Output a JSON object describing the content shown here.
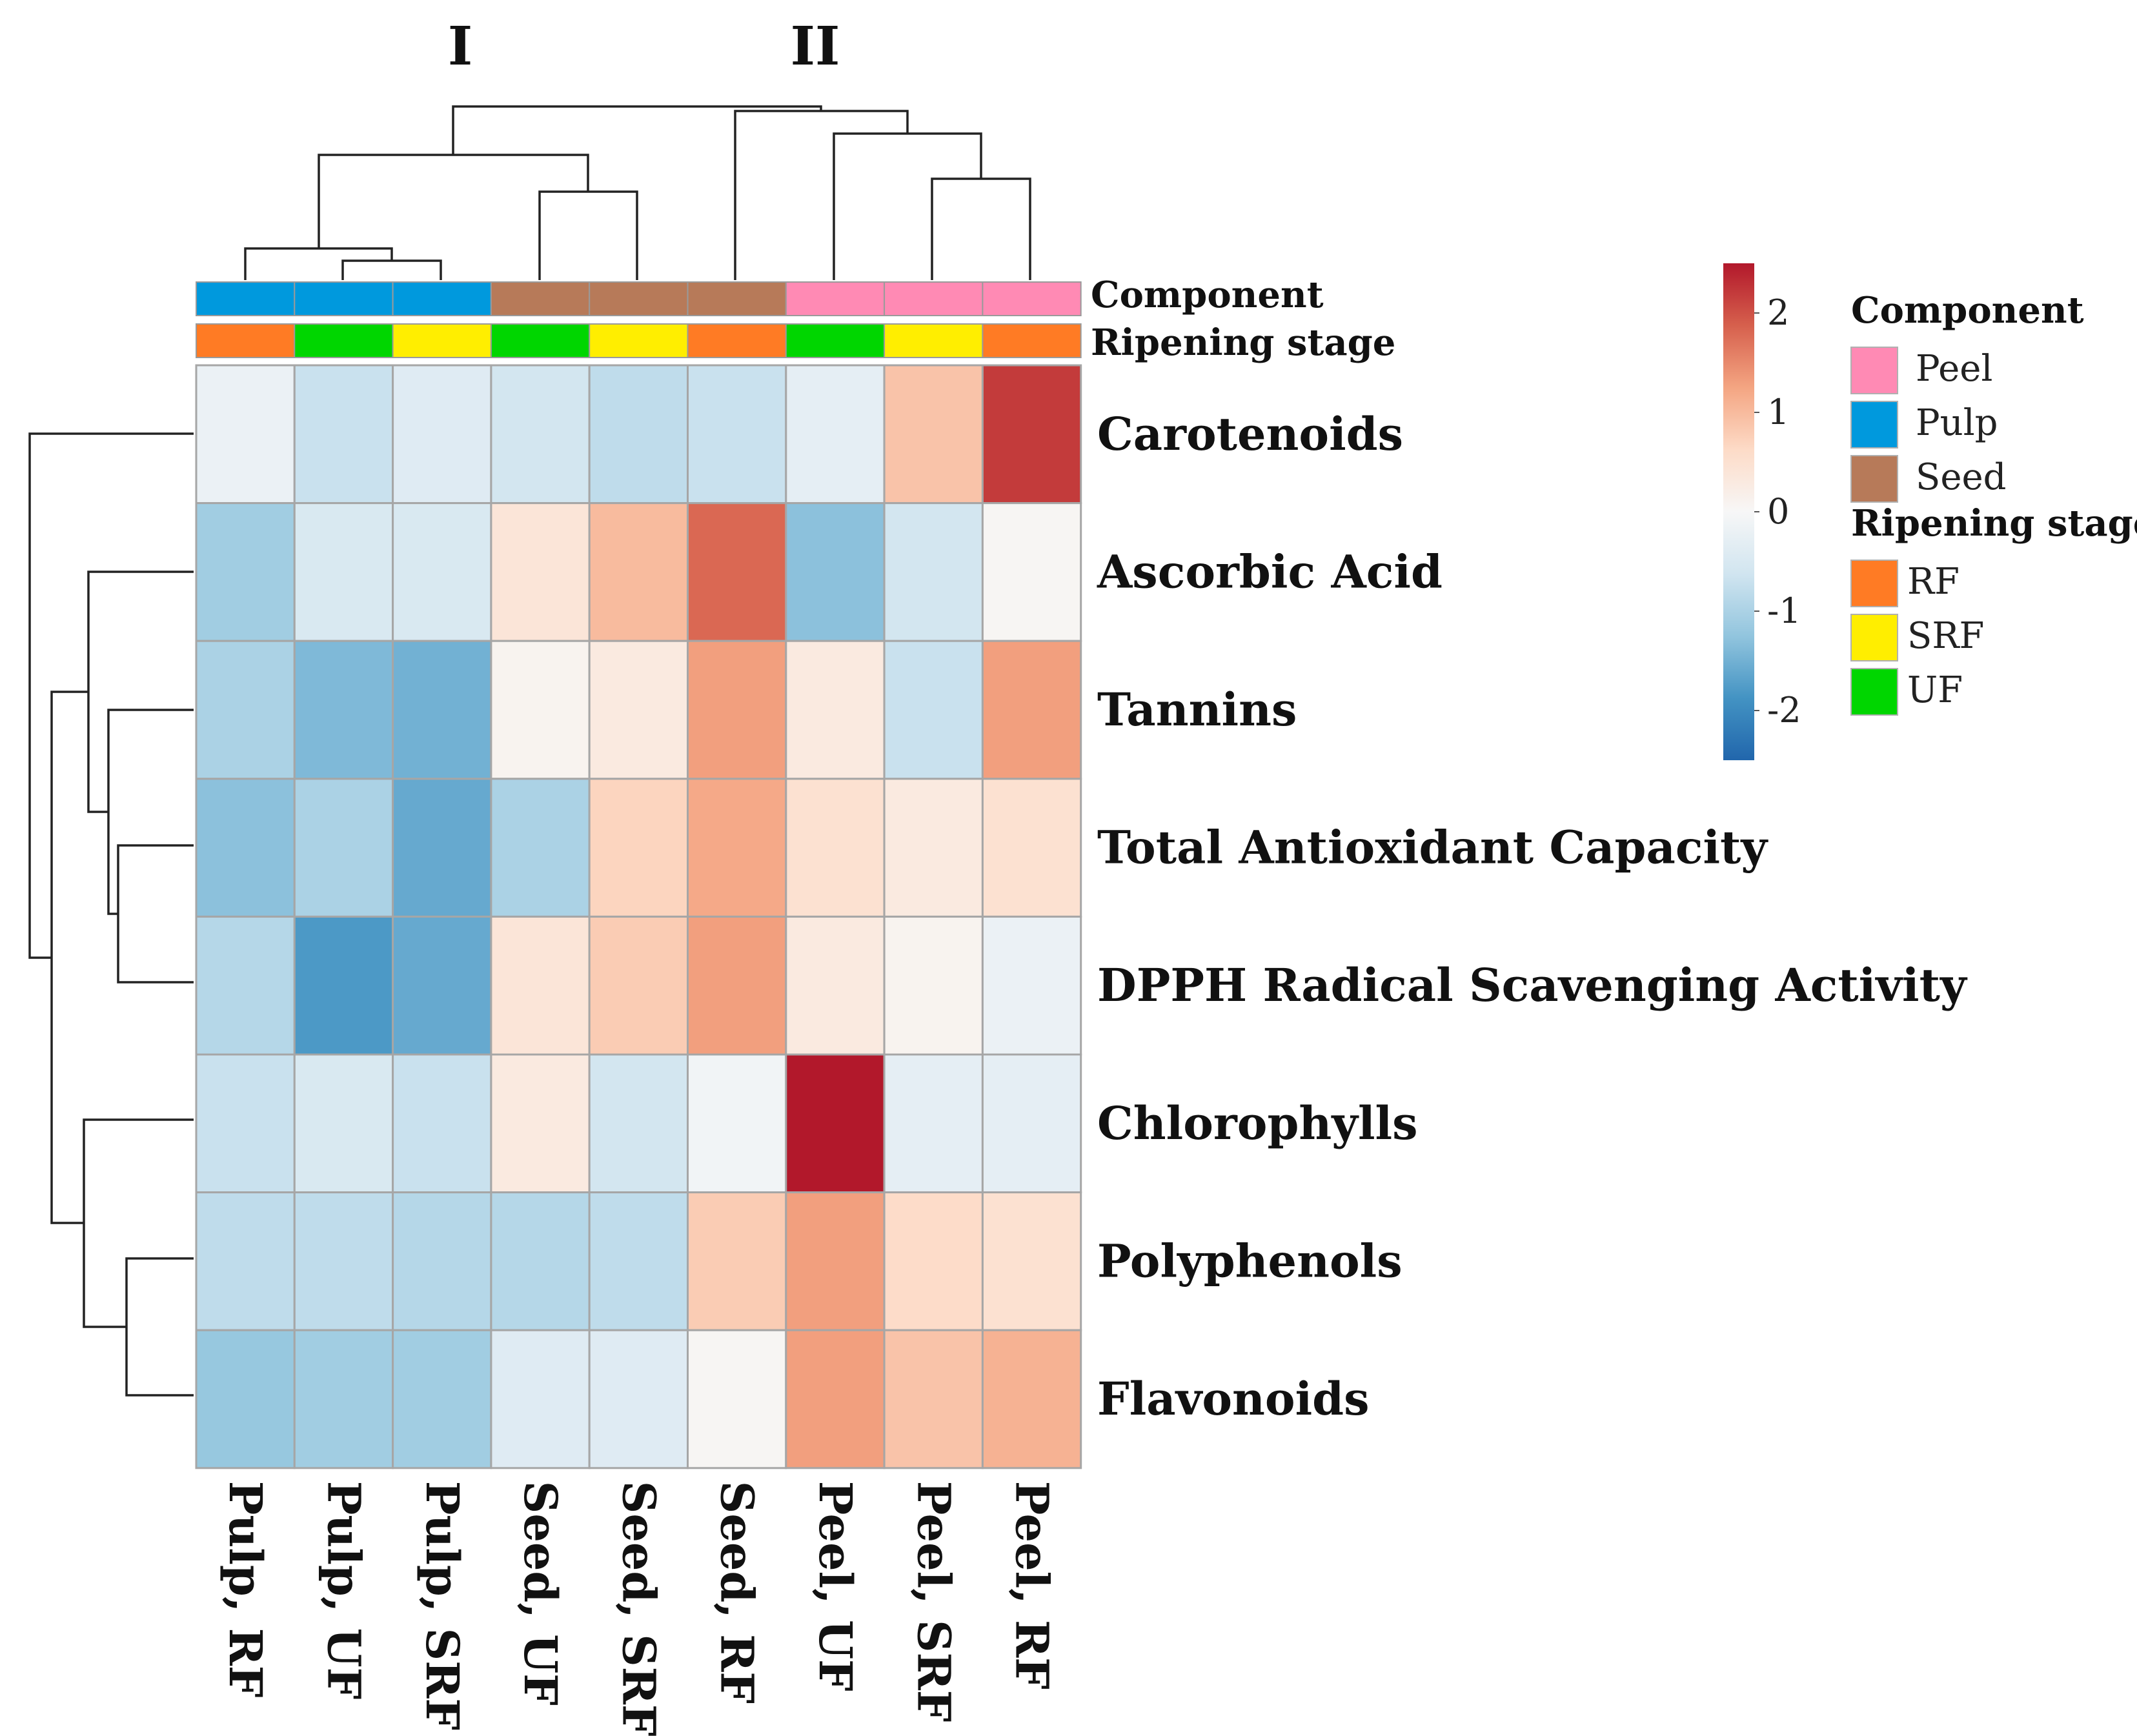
{
  "chart_data": {
    "type": "heatmap",
    "cluster_labels": [
      "I",
      "II"
    ],
    "columns": [
      "Pulp, RF",
      "Pulp, UF",
      "Pulp, SRF",
      "Seed, UF",
      "Seed, SRF",
      "Seed, RF",
      "Peel, UF",
      "Peel, SRF",
      "Peel, RF"
    ],
    "rows": [
      "Carotenoids",
      "Ascorbic Acid",
      "Tannins",
      "Total Antioxidant Capacity",
      "DPPH Radical Scavenging Activity",
      "Chlorophylls",
      "Polyphenols",
      "Flavonoids"
    ],
    "values": [
      [
        -0.2,
        -0.7,
        -0.4,
        -0.6,
        -0.8,
        -0.7,
        -0.3,
        0.9,
        2.2
      ],
      [
        -1.1,
        -0.5,
        -0.5,
        0.4,
        1.0,
        1.8,
        -1.3,
        -0.6,
        0.05
      ],
      [
        -1.0,
        -1.4,
        -1.5,
        0.1,
        0.3,
        1.3,
        0.3,
        -0.7,
        1.3
      ],
      [
        -1.3,
        -1.0,
        -1.6,
        -1.0,
        0.7,
        1.2,
        0.5,
        0.3,
        0.5
      ],
      [
        -0.9,
        -1.8,
        -1.6,
        0.4,
        0.8,
        1.3,
        0.3,
        0.1,
        -0.2
      ],
      [
        -0.7,
        -0.5,
        -0.7,
        0.3,
        -0.6,
        -0.1,
        2.5,
        -0.3,
        -0.3
      ],
      [
        -0.8,
        -0.8,
        -0.9,
        -0.9,
        -0.8,
        0.8,
        1.3,
        0.6,
        0.5
      ],
      [
        -1.2,
        -1.1,
        -1.1,
        -0.4,
        -0.4,
        0.05,
        1.3,
        0.9,
        1.1
      ]
    ],
    "annotations": {
      "component_title": "Component",
      "ripening_title": "Ripening stage",
      "component": [
        "Pulp",
        "Pulp",
        "Pulp",
        "Seed",
        "Seed",
        "Seed",
        "Peel",
        "Peel",
        "Peel"
      ],
      "ripening": [
        "RF",
        "UF",
        "SRF",
        "UF",
        "SRF",
        "RF",
        "UF",
        "SRF",
        "RF"
      ]
    },
    "colorbar": {
      "min": -2.5,
      "max": 2.5,
      "ticks": [
        2,
        1,
        0,
        -1,
        -2
      ]
    },
    "colorscale": [
      "#2166ac",
      "#4393c3",
      "#92c5de",
      "#d1e5f0",
      "#f7f7f7",
      "#fddbc7",
      "#f4a582",
      "#d6604d",
      "#b2182b"
    ],
    "legend": {
      "component_title": "Component",
      "component_items": [
        {
          "label": "Peel",
          "color": "#ff8ab4"
        },
        {
          "label": "Pulp",
          "color": "#0099dd"
        },
        {
          "label": "Seed",
          "color": "#b77a59"
        }
      ],
      "ripening_title": "Ripening stage",
      "ripening_items": [
        {
          "label": "RF",
          "color": "#ff7b24"
        },
        {
          "label": "SRF",
          "color": "#ffee00"
        },
        {
          "label": "UF",
          "color": "#00d600"
        }
      ]
    }
  }
}
